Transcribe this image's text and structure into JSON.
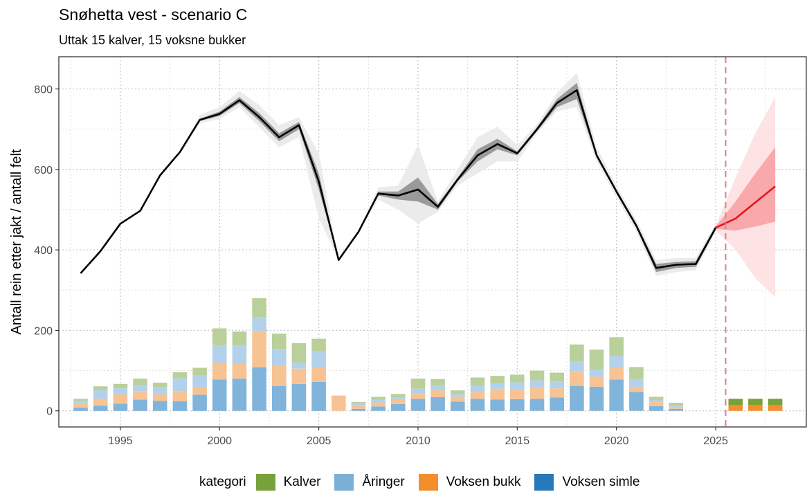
{
  "colors": {
    "kalver": "#77a13a",
    "aringer": "#7bafd6",
    "voksen_bukk": "#f28e2b",
    "voksen_simle": "#2879b9",
    "history_line": "#000000",
    "projection_line": "#e8141b",
    "dashed_line": "#d98a93"
  },
  "chart_data": {
    "type": "line+stacked-bar",
    "title": "Snøhetta vest - scenario C",
    "subtitle": "Uttak 15 kalver, 15 voksne bukker",
    "ylabel": "Antall rein etter jakt / antall felt",
    "xlabel": "",
    "xlim": [
      1991.9,
      2029.6
    ],
    "ylim": [
      -40,
      880
    ],
    "x_ticks": [
      "1995",
      "2000",
      "2005",
      "2010",
      "2015",
      "2020",
      "2025"
    ],
    "y_ticks": [
      "0",
      "200",
      "400",
      "600",
      "800"
    ],
    "grid": true,
    "legend_position": "bottom",
    "vline_x": 2025.5,
    "population": {
      "years": [
        1993,
        1994,
        1995,
        1996,
        1997,
        1998,
        1999,
        2000,
        2001,
        2002,
        2003,
        2004,
        2005,
        2006,
        2007,
        2008,
        2009,
        2010,
        2011,
        2012,
        2013,
        2014,
        2015,
        2016,
        2017,
        2018,
        2019,
        2020,
        2021,
        2022,
        2023,
        2024,
        2025
      ],
      "values": [
        342,
        397,
        465,
        497,
        585,
        643,
        723,
        738,
        772,
        730,
        680,
        710,
        570,
        375,
        445,
        540,
        535,
        550,
        507,
        575,
        635,
        663,
        640,
        700,
        765,
        797,
        635,
        545,
        460,
        355,
        363,
        365,
        455
      ],
      "inner_lower": [
        342,
        397,
        465,
        497,
        585,
        643,
        720,
        733,
        765,
        720,
        670,
        700,
        550,
        375,
        445,
        535,
        525,
        520,
        500,
        570,
        620,
        650,
        635,
        695,
        755,
        775,
        630,
        540,
        455,
        345,
        355,
        358,
        450
      ],
      "inner_upper": [
        342,
        397,
        465,
        497,
        585,
        643,
        726,
        744,
        780,
        740,
        690,
        718,
        590,
        375,
        445,
        545,
        545,
        580,
        514,
        580,
        650,
        676,
        645,
        705,
        775,
        815,
        640,
        550,
        465,
        365,
        370,
        372,
        460
      ],
      "outer_lower": [
        342,
        397,
        465,
        497,
        585,
        643,
        715,
        725,
        755,
        705,
        655,
        680,
        480,
        375,
        445,
        525,
        500,
        465,
        495,
        560,
        590,
        620,
        620,
        690,
        745,
        755,
        620,
        530,
        445,
        335,
        345,
        350,
        445
      ],
      "outer_upper": [
        342,
        397,
        465,
        497,
        585,
        643,
        735,
        755,
        795,
        760,
        710,
        730,
        640,
        375,
        445,
        555,
        560,
        660,
        520,
        600,
        680,
        706,
        660,
        712,
        790,
        840,
        655,
        560,
        475,
        375,
        380,
        380,
        465
      ]
    },
    "projection": {
      "years": [
        2025,
        2026,
        2027,
        2028
      ],
      "values": [
        455,
        478,
        518,
        558
      ],
      "inner_lower": [
        452,
        448,
        458,
        470
      ],
      "inner_upper": [
        458,
        520,
        590,
        655
      ],
      "outer_lower": [
        450,
        400,
        330,
        283
      ],
      "outer_upper": [
        460,
        580,
        690,
        780
      ]
    },
    "series": [
      {
        "name": "Kalver",
        "color_key": "kalver"
      },
      {
        "name": "Åringer",
        "color_key": "aringer"
      },
      {
        "name": "Voksen bukk",
        "color_key": "voksen_bukk"
      },
      {
        "name": "Voksen simle",
        "color_key": "voksen_simle"
      }
    ],
    "harvest": {
      "years": [
        1993,
        1994,
        1995,
        1996,
        1997,
        1998,
        1999,
        2000,
        2001,
        2002,
        2003,
        2004,
        2005,
        2006,
        2007,
        2008,
        2009,
        2010,
        2011,
        2012,
        2013,
        2014,
        2015,
        2016,
        2017,
        2018,
        2019,
        2020,
        2021,
        2022,
        2023,
        2026,
        2027,
        2028
      ],
      "voksen_simle": [
        8,
        13,
        18,
        28,
        25,
        24,
        40,
        78,
        80,
        108,
        62,
        67,
        72,
        0,
        5,
        11,
        17,
        30,
        34,
        23,
        30,
        28,
        29,
        30,
        33,
        62,
        60,
        78,
        47,
        12,
        5,
        0,
        0,
        0
      ],
      "voksen_bukk": [
        10,
        17,
        23,
        20,
        16,
        25,
        20,
        42,
        38,
        88,
        52,
        38,
        35,
        38,
        7,
        10,
        10,
        13,
        17,
        12,
        17,
        27,
        25,
        27,
        23,
        37,
        25,
        30,
        12,
        10,
        5,
        15,
        15,
        15
      ],
      "aringer": [
        7,
        22,
        15,
        16,
        18,
        32,
        28,
        43,
        45,
        36,
        40,
        15,
        40,
        0,
        5,
        7,
        7,
        12,
        12,
        7,
        17,
        12,
        17,
        19,
        17,
        23,
        17,
        28,
        20,
        5,
        5,
        0,
        0,
        0
      ],
      "kalver": [
        5,
        9,
        11,
        16,
        11,
        15,
        19,
        42,
        34,
        48,
        38,
        48,
        32,
        0,
        5,
        7,
        8,
        25,
        16,
        9,
        19,
        20,
        19,
        24,
        22,
        43,
        50,
        47,
        30,
        8,
        5,
        15,
        15,
        15
      ]
    }
  },
  "legend": {
    "title": "kategori",
    "items": [
      {
        "label": "Kalver",
        "color_key": "kalver"
      },
      {
        "label": "Åringer",
        "color_key": "aringer"
      },
      {
        "label": "Voksen bukk",
        "color_key": "voksen_bukk"
      },
      {
        "label": "Voksen simle",
        "color_key": "voksen_simle"
      }
    ]
  }
}
